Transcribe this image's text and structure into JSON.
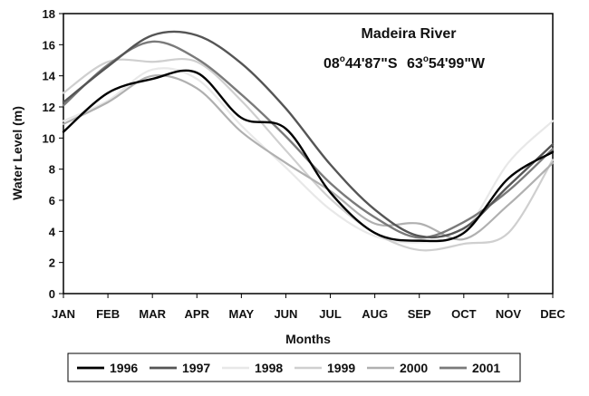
{
  "chart_data": {
    "type": "line",
    "title": "",
    "xlabel": "Months",
    "ylabel": "Water Level (m)",
    "ylim": [
      0,
      18
    ],
    "y_ticks": [
      0,
      2,
      4,
      6,
      8,
      10,
      12,
      14,
      16,
      18
    ],
    "grid": false,
    "legend_position": "bottom",
    "annotations": {
      "river": "Madeira River",
      "coord_lat": "08",
      "coord_lat_rest": "44'87\"S",
      "coord_lon": "63",
      "coord_lon_rest": "54'99\"W",
      "degree": "o"
    },
    "categories": [
      "JAN",
      "FEB",
      "MAR",
      "APR",
      "MAY",
      "JUN",
      "JUL",
      "AUG",
      "SEP",
      "OCT",
      "NOV",
      "DEC"
    ],
    "series": [
      {
        "name": "1996",
        "color": "#000000",
        "width": 2.4,
        "values": [
          10.4,
          12.9,
          13.8,
          14.2,
          11.3,
          10.6,
          6.5,
          3.9,
          3.4,
          3.9,
          7.4,
          9.1
        ]
      },
      {
        "name": "1997",
        "color": "#555555",
        "width": 2.4,
        "values": [
          12.3,
          14.6,
          16.6,
          16.6,
          14.8,
          11.9,
          8.3,
          5.4,
          3.7,
          4.2,
          6.9,
          9.6
        ]
      },
      {
        "name": "1998",
        "color": "#e8e8e8",
        "width": 2.2,
        "values": [
          11.1,
          12.4,
          14.4,
          13.8,
          10.8,
          8.1,
          5.4,
          3.7,
          3.3,
          4.0,
          8.4,
          11.1
        ]
      },
      {
        "name": "1999",
        "color": "#cfcfcf",
        "width": 2.2,
        "values": [
          12.9,
          14.9,
          14.9,
          14.9,
          12.4,
          9.2,
          6.1,
          3.9,
          2.8,
          3.2,
          3.9,
          8.6
        ]
      },
      {
        "name": "2000",
        "color": "#b0b0b0",
        "width": 2.2,
        "values": [
          10.9,
          12.3,
          14.0,
          13.2,
          10.4,
          8.4,
          6.6,
          4.5,
          4.5,
          3.5,
          5.7,
          8.4
        ]
      },
      {
        "name": "2001",
        "color": "#7a7a7a",
        "width": 2.4,
        "values": [
          12.1,
          14.7,
          16.2,
          15.1,
          12.8,
          10.1,
          7.1,
          4.9,
          3.6,
          4.6,
          6.6,
          9.3
        ]
      }
    ]
  }
}
